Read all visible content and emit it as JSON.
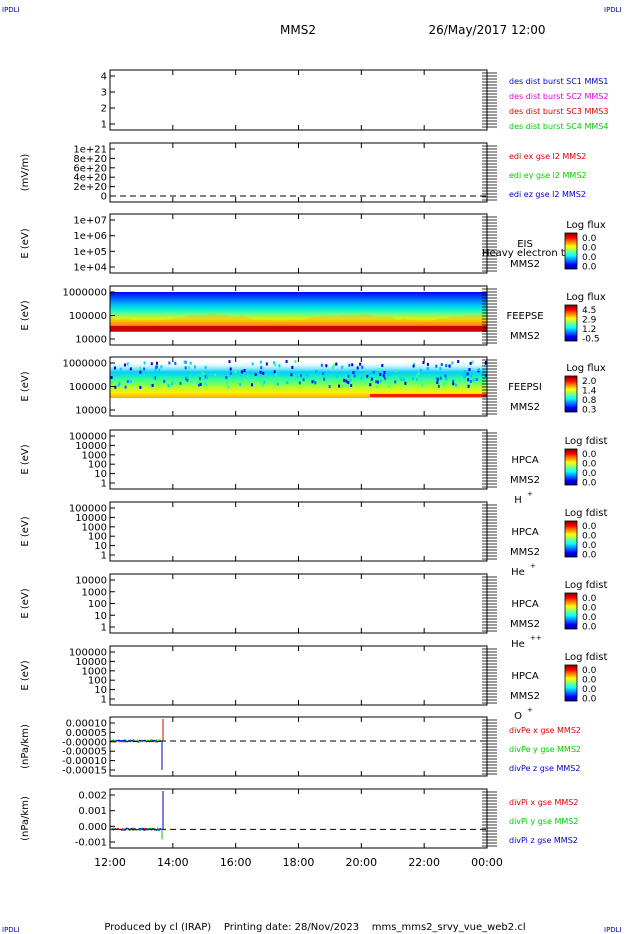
{
  "header": {
    "corner_left_top": "IPDLI",
    "corner_right_top": "IPDLI",
    "corner_left_bottom": "IPDLI",
    "corner_right_bottom": "IPDLI",
    "title": "MMS2",
    "date": "26/May/2017 12:00"
  },
  "footer": {
    "text": "Produced by cl (IRAP)    Printing date: 28/Nov/2023    mms_mms2_srvy_vue_web2.cl"
  },
  "colors": {
    "blue": "#0000cc",
    "magenta": "#dd00dd",
    "red": "#dd0000",
    "green": "#00cc00"
  },
  "chart_data": [
    {
      "id": "p1",
      "type": "line",
      "yticks": [
        "4",
        "3",
        "2",
        "1"
      ],
      "legend": [
        {
          "text": "des dist burst SC1 MMS1",
          "color": "#0000cc"
        },
        {
          "text": "des dist burst SC2 MMS2",
          "color": "#dd00dd"
        },
        {
          "text": "des dist burst SC3 MMS3",
          "color": "#dd0000"
        },
        {
          "text": "des dist burst SC4 MMS4",
          "color": "#00cc00"
        }
      ]
    },
    {
      "id": "p2",
      "type": "line",
      "ylabel": "(mV/m)",
      "yticks": [
        "1e+21",
        "8e+20",
        "6e+20",
        "4e+20",
        "2e+20",
        "0"
      ],
      "legend": [
        {
          "text": "edi ex gse l2 MMS2",
          "color": "#dd0000"
        },
        {
          "text": "edi ey gse l2 MMS2",
          "color": "#00cc00"
        },
        {
          "text": "edi ez gse l2 MMS2",
          "color": "#0000cc"
        }
      ]
    },
    {
      "id": "p3",
      "type": "heatmap",
      "ylabel": "E (eV)",
      "yticks": [
        "1e+07",
        "1e+06",
        "1e+05",
        "1e+04"
      ],
      "instrument": "EIS",
      "overlay_label": "Heavy electron to",
      "spacecraft": "MMS2",
      "colorbar_title": "Log flux",
      "colorbar_values": [
        "0.0",
        "0.0",
        "0.0",
        "0.0"
      ]
    },
    {
      "id": "p4",
      "type": "heatmap",
      "ylabel": "E (eV)",
      "yticks": [
        "1000000",
        "100000",
        "10000"
      ],
      "instrument": "FEEPSE",
      "spacecraft": "MMS2",
      "colorbar_title": "Log flux",
      "colorbar_values": [
        "4.5",
        "2.9",
        "1.2",
        "-0.5"
      ]
    },
    {
      "id": "p5",
      "type": "heatmap",
      "ylabel": "E (eV)",
      "yticks": [
        "1000000",
        "100000",
        "10000"
      ],
      "instrument": "FEEPSI",
      "spacecraft": "MMS2",
      "colorbar_title": "Log flux",
      "colorbar_values": [
        "2.0",
        "1.4",
        "0.8",
        "0.3"
      ]
    },
    {
      "id": "p6",
      "type": "heatmap",
      "ylabel": "E (eV)",
      "yticks": [
        "100000",
        "10000",
        "1000",
        "100",
        "10",
        "1"
      ],
      "instrument": "HPCA",
      "spacecraft": "MMS2",
      "species": "H",
      "species_sup": "+",
      "colorbar_title": "Log fdist",
      "colorbar_values": [
        "0.0",
        "0.0",
        "0.0",
        "0.0"
      ]
    },
    {
      "id": "p7",
      "type": "heatmap",
      "ylabel": "E (eV)",
      "yticks": [
        "100000",
        "10000",
        "1000",
        "100",
        "10",
        "1"
      ],
      "instrument": "HPCA",
      "spacecraft": "MMS2",
      "species": "He",
      "species_sup": "+",
      "colorbar_title": "Log fdist",
      "colorbar_values": [
        "0.0",
        "0.0",
        "0.0",
        "0.0"
      ]
    },
    {
      "id": "p8",
      "type": "heatmap",
      "ylabel": "E (eV)",
      "yticks": [
        "10000",
        "1000",
        "100",
        "10",
        "1"
      ],
      "instrument": "HPCA",
      "spacecraft": "MMS2",
      "species": "He",
      "species_sup": "++",
      "colorbar_title": "Log fdist",
      "colorbar_values": [
        "0.0",
        "0.0",
        "0.0",
        "0.0"
      ]
    },
    {
      "id": "p9",
      "type": "heatmap",
      "ylabel": "E (eV)",
      "yticks": [
        "100000",
        "10000",
        "1000",
        "100",
        "10",
        "1"
      ],
      "instrument": "HPCA",
      "spacecraft": "MMS2",
      "species": "O",
      "species_sup": "+",
      "colorbar_title": "Log fdist",
      "colorbar_values": [
        "0.0",
        "0.0",
        "0.0",
        "0.0"
      ]
    },
    {
      "id": "p10",
      "type": "line",
      "ylabel": "(nPa/km)",
      "yticks": [
        "0.00010",
        "0.00005",
        "-0.00000",
        "-0.00005",
        "-0.00010",
        "-0.00015"
      ],
      "ylim": [
        -0.00016,
        0.00011
      ],
      "legend": [
        {
          "text": "divPe x gse MMS2",
          "color": "#dd0000"
        },
        {
          "text": "divPe y gse MMS2",
          "color": "#00cc00"
        },
        {
          "text": "divPe z gse MMS2",
          "color": "#0000cc"
        }
      ]
    },
    {
      "id": "p11",
      "type": "line",
      "ylabel": "(nPa/km)",
      "yticks": [
        "0.002",
        "0.001",
        "0.000",
        "-0.001"
      ],
      "ylim": [
        -0.0012,
        0.0026
      ],
      "legend": [
        {
          "text": "divPi x gse MMS2",
          "color": "#dd0000"
        },
        {
          "text": "divPi y gse MMS2",
          "color": "#00cc00"
        },
        {
          "text": "divPi z gse MMS2",
          "color": "#0000cc"
        }
      ]
    }
  ],
  "x_axis": {
    "ticks": [
      "12:00",
      "14:00",
      "16:00",
      "18:00",
      "20:00",
      "22:00",
      "00:00"
    ]
  }
}
